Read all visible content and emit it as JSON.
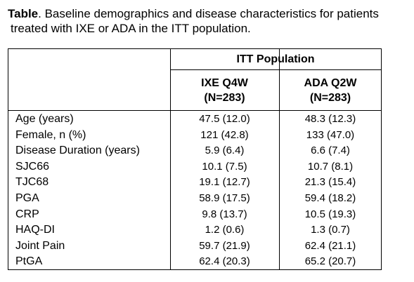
{
  "caption": {
    "lead": "Table",
    "text_line1": ". Baseline demographics and disease characteristics for patients",
    "text_line2": "treated with IXE or ADA in the ITT population."
  },
  "table": {
    "group_header": "ITT Population",
    "columns": [
      {
        "name": "IXE Q4W",
        "n": "(N=283)"
      },
      {
        "name": "ADA Q2W",
        "n": "(N=283)"
      }
    ],
    "rows": [
      {
        "label": "Age (years)",
        "ixe": "47.5 (12.0)",
        "ada": "48.3 (12.3)"
      },
      {
        "label": "Female, n (%)",
        "ixe": "121 (42.8)",
        "ada": "133 (47.0)"
      },
      {
        "label": "Disease Duration (years)",
        "ixe": "5.9 (6.4)",
        "ada": "6.6 (7.4)"
      },
      {
        "label": "SJC66",
        "ixe": "10.1 (7.5)",
        "ada": "10.7 (8.1)"
      },
      {
        "label": "TJC68",
        "ixe": "19.1 (12.7)",
        "ada": "21.3 (15.4)"
      },
      {
        "label": "PGA",
        "ixe": "58.9 (17.5)",
        "ada": "59.4 (18.2)"
      },
      {
        "label": "CRP",
        "ixe": "9.8 (13.7)",
        "ada": "10.5 (19.3)"
      },
      {
        "label": "HAQ-DI",
        "ixe": "1.2 (0.6)",
        "ada": "1.3 (0.7)"
      },
      {
        "label": "Joint Pain",
        "ixe": "59.7 (21.9)",
        "ada": "62.4 (21.1)"
      },
      {
        "label": "PtGA",
        "ixe": "62.4 (20.3)",
        "ada": "65.2 (20.7)"
      }
    ]
  }
}
